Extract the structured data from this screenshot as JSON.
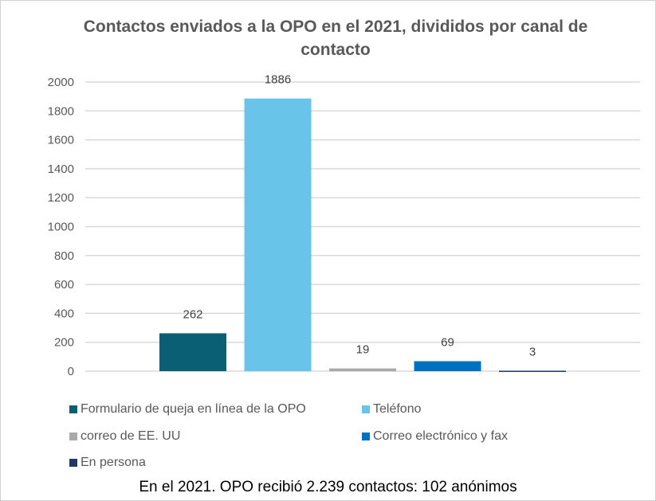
{
  "chart_data": {
    "type": "bar",
    "title": "Contactos enviados a la OPO en el 2021, divididos por canal de contacto",
    "categories": [
      "Formulario de queja en línea de la OPO",
      "Teléfono",
      "correo de EE. UU",
      "Correo electrónico y fax",
      "En persona"
    ],
    "series": [
      {
        "name": "Formulario de queja en línea de la OPO",
        "value": 262,
        "color": "#0b5f75"
      },
      {
        "name": "Teléfono",
        "value": 1886,
        "color": "#68c4e8"
      },
      {
        "name": "correo de EE. UU",
        "value": 19,
        "color": "#a9a9a9"
      },
      {
        "name": "Correo electrónico y fax",
        "value": 69,
        "color": "#0070c0"
      },
      {
        "name": "En persona",
        "value": 3,
        "color": "#1f3864"
      }
    ],
    "ylim": [
      0,
      2000
    ],
    "yticks": [
      "0",
      "200",
      "400",
      "600",
      "800",
      "1000",
      "1200",
      "1400",
      "1600",
      "1800",
      "2000"
    ],
    "grid": true,
    "legend_position": "bottom",
    "data_labels": [
      "262",
      "1886",
      "19",
      "69",
      "3"
    ]
  },
  "footnote": "En el 2021. OPO recibió 2.239 contactos: 102 anónimos"
}
